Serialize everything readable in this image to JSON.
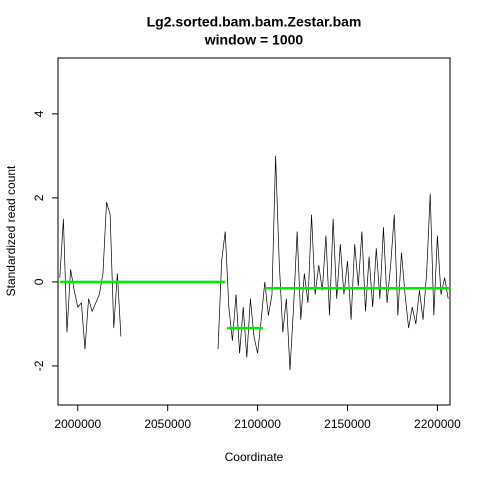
{
  "chart_data": {
    "type": "line",
    "title": "Lg2.sorted.bam.bam.Zestar.bam",
    "subtitle": "window = 1000",
    "xlabel": "Coordinate",
    "ylabel": "Standardized read count",
    "xlim": [
      1989000,
      2207000
    ],
    "ylim": [
      -2.93,
      5.33
    ],
    "xticks": [
      2000000,
      2050000,
      2100000,
      2150000,
      2200000
    ],
    "yticks": [
      -2,
      0,
      2,
      4
    ],
    "series": [
      {
        "color": "#000000",
        "x": [
          1990000,
          1992000,
          1994000,
          1996000,
          1998000,
          2000000,
          2002000,
          2004000,
          2006000,
          2008000,
          2010000,
          2012000,
          2014000,
          2016000,
          2018000,
          2020000,
          2022000,
          2024000,
          2050000,
          2078000,
          2080000,
          2082000,
          2084000,
          2086000,
          2088000,
          2090000,
          2092000,
          2094000,
          2096000,
          2098000,
          2100000,
          2102000,
          2104000,
          2106000,
          2108000,
          2110000,
          2112000,
          2114000,
          2116000,
          2118000,
          2120000,
          2122000,
          2124000,
          2126000,
          2128000,
          2130000,
          2132000,
          2134000,
          2136000,
          2138000,
          2140000,
          2142000,
          2144000,
          2146000,
          2148000,
          2150000,
          2152000,
          2154000,
          2156000,
          2158000,
          2160000,
          2162000,
          2164000,
          2166000,
          2168000,
          2170000,
          2172000,
          2174000,
          2176000,
          2178000,
          2180000,
          2182000,
          2184000,
          2186000,
          2188000,
          2190000,
          2192000,
          2194000,
          2196000,
          2198000,
          2200000,
          2202000,
          2204000,
          2206000
        ],
        "values": [
          0.1,
          1.5,
          -1.2,
          0.3,
          -0.2,
          -0.6,
          -0.5,
          -1.6,
          -0.4,
          -0.7,
          -0.5,
          -0.3,
          0.2,
          1.9,
          1.6,
          -1.1,
          0.2,
          -1.3,
          null,
          -1.6,
          0.5,
          1.2,
          -0.6,
          -1.4,
          -0.3,
          -1.7,
          -0.6,
          -1.8,
          -0.4,
          -1.3,
          -1.7,
          -0.9,
          0.0,
          -0.8,
          -0.3,
          3.0,
          0.5,
          -1.2,
          -0.4,
          -2.1,
          -0.6,
          1.2,
          -0.9,
          0.2,
          -0.5,
          1.6,
          -0.3,
          0.4,
          -0.2,
          1.1,
          -0.8,
          1.5,
          -0.4,
          0.9,
          -0.3,
          0.5,
          -0.9,
          0.9,
          -0.1,
          1.2,
          -0.7,
          0.6,
          -0.6,
          0.8,
          -0.4,
          1.3,
          -0.5,
          0.4,
          1.6,
          -0.8,
          0.7,
          -0.3,
          -1.1,
          -0.6,
          -1.0,
          -0.2,
          -0.9,
          0.2,
          2.1,
          -0.8,
          1.1,
          -0.3,
          0.1,
          -0.4
        ]
      },
      {
        "color": "#00ee00",
        "x": [
          1990000,
          2082000,
          2082500,
          2083000,
          2103000,
          2103500,
          2104000,
          2207000
        ],
        "values": [
          0,
          0,
          null,
          -1.1,
          -1.1,
          null,
          -0.15,
          -0.15
        ]
      }
    ]
  }
}
